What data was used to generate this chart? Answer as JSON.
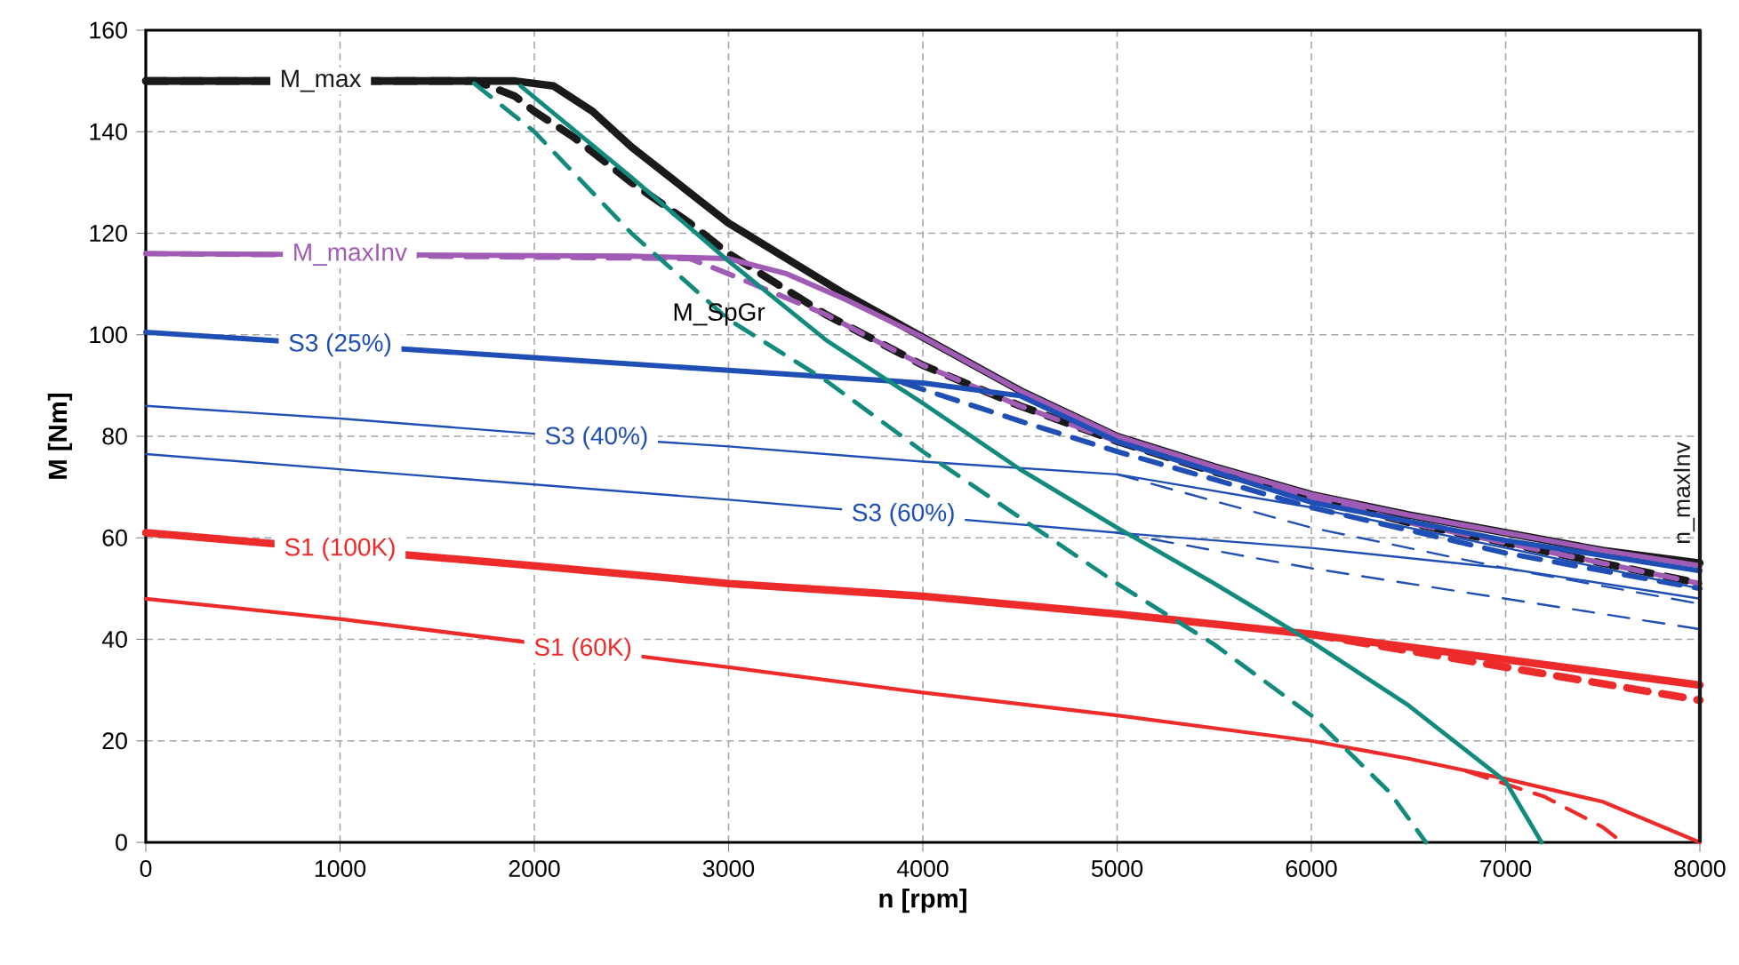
{
  "chart_data": {
    "type": "line",
    "xlabel": "n [rpm]",
    "ylabel": "M [Nm]",
    "xlim": [
      0,
      8000
    ],
    "ylim": [
      0,
      160
    ],
    "xticks": [
      0,
      1000,
      2000,
      3000,
      4000,
      5000,
      6000,
      7000,
      8000
    ],
    "yticks": [
      0,
      20,
      40,
      60,
      80,
      100,
      120,
      140,
      160
    ],
    "grid": true,
    "annotations": [
      "M_SpGr"
    ],
    "ref_lines": [
      {
        "axis": "x",
        "value": 8000,
        "label": "n_maxInv",
        "color": "#1a1a1a"
      }
    ],
    "series": [
      {
        "name": "M_max",
        "color": "#1a1a1a",
        "line_style": "solid",
        "x": [
          0,
          1900,
          2100,
          2300,
          2500,
          2800,
          3000,
          3300,
          3600,
          4000,
          4500,
          5000,
          5500,
          6000,
          6500,
          7000,
          7500,
          8000
        ],
        "values": [
          150,
          150,
          149,
          144,
          137,
          128,
          122,
          115,
          108,
          99.5,
          89,
          80,
          74,
          68.5,
          64.5,
          61,
          57.5,
          55
        ]
      },
      {
        "color": "#1a1a1a",
        "line_style": "dashed",
        "x": [
          0,
          1700,
          1900,
          2000,
          2200,
          2500,
          2800,
          3000,
          3500,
          4000,
          4500,
          5000,
          5500,
          6000,
          6500,
          7000,
          7500,
          8000
        ],
        "values": [
          150,
          150,
          147,
          144,
          139,
          130,
          122,
          116,
          104,
          94,
          86,
          79,
          73,
          68,
          63,
          59,
          55,
          51
        ]
      },
      {
        "name": "M_maxInv",
        "color": "#a05cb5",
        "line_style": "solid",
        "x": [
          0,
          2500,
          3000,
          3300,
          3600,
          4000,
          4500,
          5000,
          5500,
          6000,
          6500,
          7000,
          7500,
          8000
        ],
        "values": [
          116,
          115.5,
          115,
          112,
          107,
          99.5,
          89,
          80,
          74,
          68.5,
          64.5,
          61,
          57.5,
          54.5
        ]
      },
      {
        "color": "#a05cb5",
        "line_style": "dashed",
        "x": [
          0,
          2800,
          3000,
          3500,
          4000,
          4500,
          5000,
          5500,
          6000,
          6500,
          7000,
          7500,
          8000
        ],
        "values": [
          116,
          115,
          112,
          104,
          94,
          86,
          79,
          73,
          68,
          63,
          59,
          55,
          51
        ]
      },
      {
        "name": "S3 (25%)",
        "color": "#1f4fb4",
        "line_style": "solid",
        "x": [
          0,
          2000,
          3000,
          4000,
          4500,
          5000,
          6000,
          7000,
          8000
        ],
        "values": [
          100.5,
          95.5,
          93,
          90.5,
          88,
          79,
          67,
          59.5,
          53.5
        ]
      },
      {
        "color": "#1f4fb4",
        "line_style": "dashed",
        "x": [
          3900,
          4500,
          5000,
          6000,
          7000,
          8000
        ],
        "values": [
          90.5,
          83,
          77,
          66,
          57,
          50
        ]
      },
      {
        "name": "S3 (40%)",
        "color": "#1f4fb4",
        "line_style": "solid",
        "x": [
          0,
          1000,
          2000,
          3000,
          4000,
          5000,
          6000,
          7000,
          8000
        ],
        "values": [
          86,
          83.5,
          80.5,
          78,
          75,
          72.5,
          66,
          58,
          50
        ]
      },
      {
        "color": "#1f4fb4",
        "line_style": "dashed",
        "x": [
          5000,
          6000,
          7000,
          8000
        ],
        "values": [
          72.5,
          62,
          54,
          47
        ]
      },
      {
        "name": "S3 (60%)",
        "color": "#1f4fb4",
        "line_style": "solid",
        "x": [
          0,
          1000,
          2000,
          3000,
          5000,
          6000,
          7000,
          8000
        ],
        "values": [
          76.5,
          73.5,
          70.5,
          67.5,
          61,
          58,
          54,
          48
        ]
      },
      {
        "color": "#1f4fb4",
        "line_style": "dashed",
        "x": [
          5000,
          6000,
          7000,
          8000
        ],
        "values": [
          61,
          54,
          48,
          42
        ]
      },
      {
        "name": "S1 (100K)",
        "color": "#ee2b2b",
        "line_style": "solid",
        "x": [
          0,
          2000,
          3000,
          4000,
          5000,
          6000,
          7000,
          8000
        ],
        "values": [
          61,
          54.5,
          51,
          48.5,
          45,
          41,
          36,
          31
        ]
      },
      {
        "color": "#ee2b2b",
        "line_style": "dashed",
        "x": [
          6000,
          7000,
          8000
        ],
        "values": [
          41,
          34.5,
          28
        ]
      },
      {
        "name": "S1 (60K)",
        "color": "#ee2b2b",
        "line_style": "solid",
        "x": [
          0,
          1000,
          3000,
          4000,
          5000,
          6000,
          6500,
          7000,
          7500,
          8000
        ],
        "values": [
          48,
          44,
          34.5,
          29.5,
          25,
          20,
          16.5,
          12.5,
          8,
          0
        ]
      },
      {
        "color": "#ee2b2b",
        "line_style": "dashed",
        "x": [
          6800,
          7200,
          7500,
          7600
        ],
        "values": [
          14,
          9,
          3,
          0
        ]
      },
      {
        "color": "#138a7e",
        "line_style": "solid",
        "x": [
          1930,
          2500,
          3000,
          3500,
          4000,
          4500,
          5000,
          5500,
          6000,
          6500,
          7000,
          7185
        ],
        "values": [
          149,
          131,
          114.5,
          99,
          86.5,
          73.5,
          62,
          51,
          39.5,
          27,
          12,
          0
        ]
      },
      {
        "color": "#138a7e",
        "line_style": "dashed",
        "x": [
          1690,
          2000,
          2500,
          3000,
          3500,
          4000,
          4500,
          5000,
          5500,
          6000,
          6400,
          6590
        ],
        "values": [
          149.5,
          140,
          120,
          103,
          91,
          77,
          64,
          51,
          39,
          25,
          10,
          0
        ]
      }
    ]
  }
}
